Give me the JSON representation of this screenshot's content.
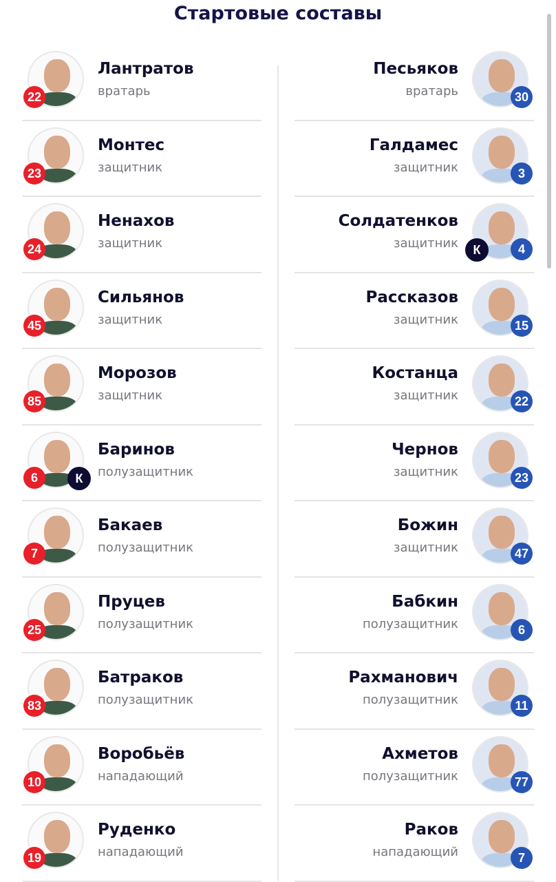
{
  "title": "Стартовые составы",
  "colors": {
    "home_number": "#e8202a",
    "away_number": "#2755b5",
    "captain": "#0d0d33",
    "title": "#14144a"
  },
  "captain_label": "К",
  "home": [
    {
      "number": "22",
      "name": "Лантратов",
      "role": "вратарь"
    },
    {
      "number": "23",
      "name": "Монтес",
      "role": "защитник"
    },
    {
      "number": "24",
      "name": "Ненахов",
      "role": "защитник"
    },
    {
      "number": "45",
      "name": "Сильянов",
      "role": "защитник"
    },
    {
      "number": "85",
      "name": "Морозов",
      "role": "защитник"
    },
    {
      "number": "6",
      "name": "Баринов",
      "role": "полузащитник",
      "captain": true
    },
    {
      "number": "7",
      "name": "Бакаев",
      "role": "полузащитник"
    },
    {
      "number": "25",
      "name": "Пруцев",
      "role": "полузащитник"
    },
    {
      "number": "83",
      "name": "Батраков",
      "role": "полузащитник"
    },
    {
      "number": "10",
      "name": "Воробьёв",
      "role": "нападающий"
    },
    {
      "number": "19",
      "name": "Руденко",
      "role": "нападающий"
    }
  ],
  "away": [
    {
      "number": "30",
      "name": "Песьяков",
      "role": "вратарь"
    },
    {
      "number": "3",
      "name": "Галдамес",
      "role": "защитник"
    },
    {
      "number": "4",
      "name": "Солдатенков",
      "role": "защитник",
      "captain": true
    },
    {
      "number": "15",
      "name": "Рассказов",
      "role": "защитник"
    },
    {
      "number": "22",
      "name": "Костанца",
      "role": "защитник"
    },
    {
      "number": "23",
      "name": "Чернов",
      "role": "защитник"
    },
    {
      "number": "47",
      "name": "Божин",
      "role": "защитник"
    },
    {
      "number": "6",
      "name": "Бабкин",
      "role": "полузащитник"
    },
    {
      "number": "11",
      "name": "Рахманович",
      "role": "полузащитник"
    },
    {
      "number": "77",
      "name": "Ахметов",
      "role": "полузащитник"
    },
    {
      "number": "7",
      "name": "Раков",
      "role": "нападающий"
    }
  ]
}
